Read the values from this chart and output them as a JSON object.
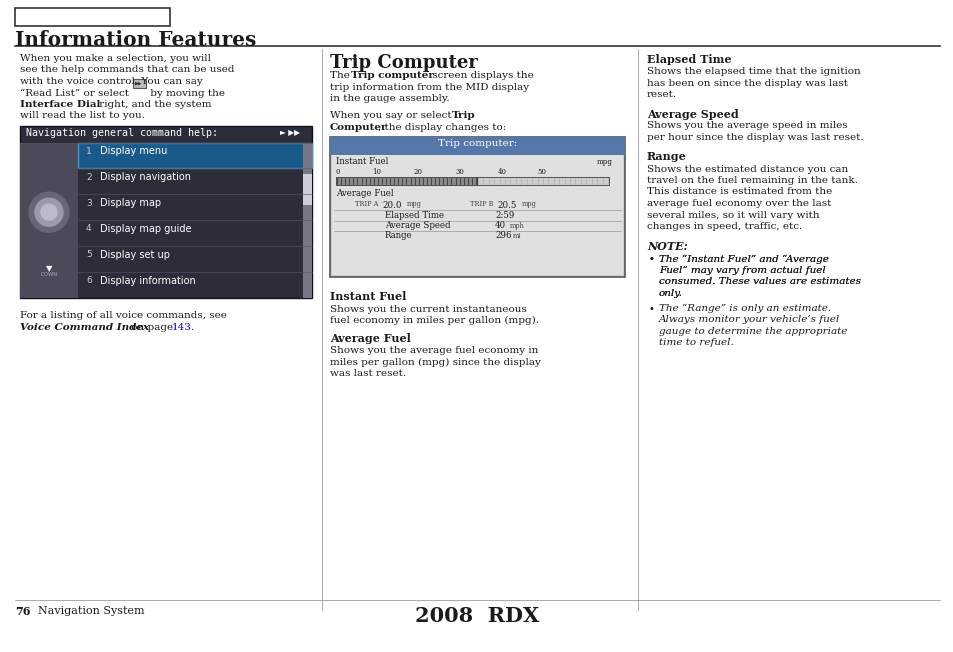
{
  "page_bg": "#ffffff",
  "title": "Information Features",
  "page_number": "76",
  "page_nav": "Navigation System",
  "footer_center": "2008  RDX",
  "nav_box_title": "Navigation general command help:",
  "nav_box_items": [
    "Display menu",
    "Display navigation",
    "Display map",
    "Display map guide",
    "Display set up",
    "Display information"
  ],
  "nav_box_numbers": [
    "1",
    "2",
    "3",
    "4",
    "5",
    "6"
  ],
  "link_color": "#0000cc",
  "nav_bg_color": "#2d2d3a",
  "nav_selected_bg": "#1a5a8a",
  "trip_title_bg": "#5577aa"
}
